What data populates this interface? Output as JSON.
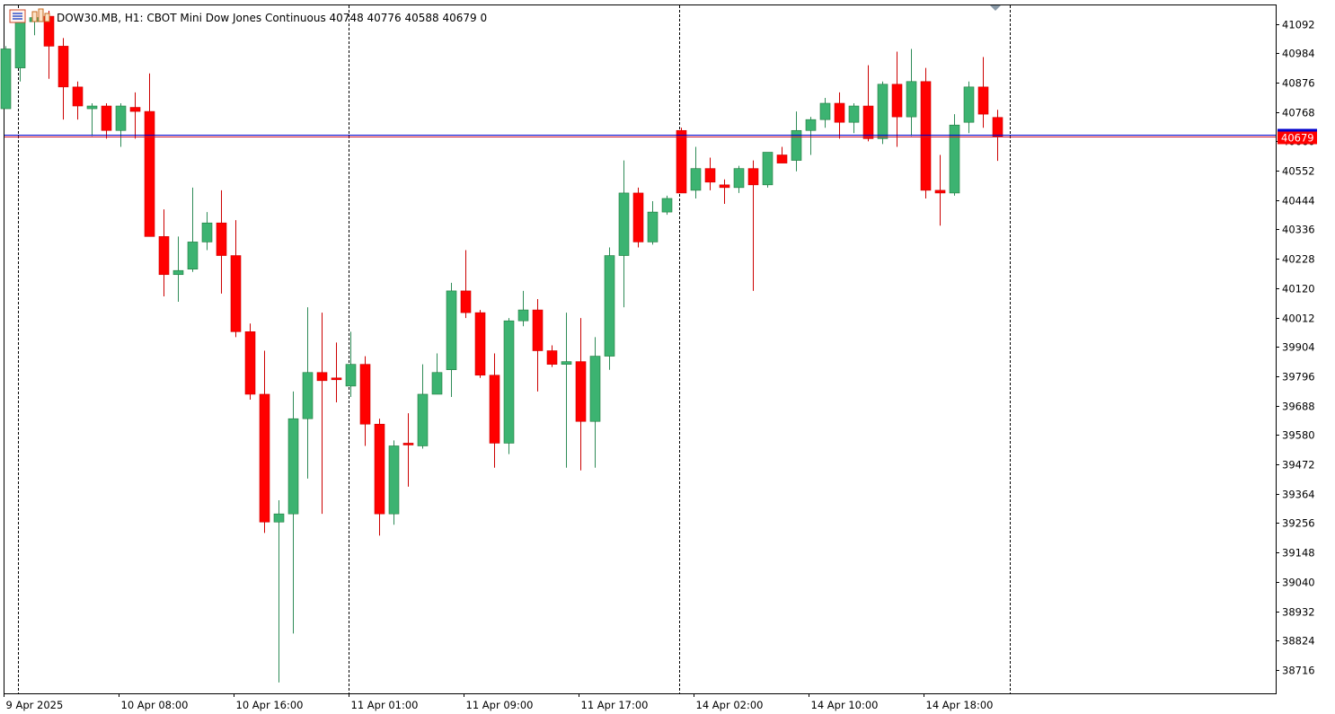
{
  "header": {
    "symbol_text": "DOW30.MB, H1:  CBOT Mini Dow Jones Continuous  40748 40776 40588 40679  0",
    "icons": [
      "chart-menu-icon",
      "chart-bars-icon"
    ]
  },
  "price_tag": {
    "label": "40679",
    "value": 40679,
    "ask_value": 40686,
    "color": "#ff0000",
    "bid_line_color": "#c8102e",
    "ask_line_color": "#0000cc"
  },
  "colors": {
    "bull": "#3cb371",
    "bear": "#ff0000",
    "bull_outline": "#1e7a3c",
    "bear_outline": "#cc0000",
    "wick_bull": "#2e8b57",
    "wick_bear": "#cc0000",
    "doji": "#44dd44",
    "frame": "#000000",
    "separator": "#000000"
  },
  "chart_data": {
    "type": "candlestick",
    "title": "",
    "ylim": [
      38630,
      41160
    ],
    "y_ticks": [
      41092,
      40984,
      40876,
      40768,
      40660,
      40552,
      40444,
      40336,
      40228,
      40120,
      40012,
      39904,
      39796,
      39688,
      39580,
      39472,
      39364,
      39256,
      39148,
      39040,
      38932,
      38824,
      38716
    ],
    "y_tick_labels": [
      "41092",
      "40984",
      "40876",
      "40768",
      "40660",
      "40552",
      "40444",
      "40336",
      "40228",
      "40120",
      "40012",
      "39904",
      "39796",
      "39688",
      "39580",
      "39472",
      "39364",
      "39256",
      "39148",
      "39040",
      "38932",
      "38824",
      "38716"
    ],
    "x_labels": [
      {
        "bar": 0,
        "text": "9 Apr 2025"
      },
      {
        "bar": 8,
        "text": "10 Apr 08:00"
      },
      {
        "bar": 16,
        "text": "10 Apr 16:00"
      },
      {
        "bar": 24,
        "text": "11 Apr 01:00"
      },
      {
        "bar": 32,
        "text": "11 Apr 09:00"
      },
      {
        "bar": 40,
        "text": "11 Apr 17:00"
      },
      {
        "bar": 48,
        "text": "14 Apr 02:00"
      },
      {
        "bar": 56,
        "text": "14 Apr 10:00"
      },
      {
        "bar": 64,
        "text": "14 Apr 18:00"
      }
    ],
    "session_separators_bar": [
      0.5,
      23.5,
      46.5,
      69.5
    ],
    "grid": false,
    "candles": [
      {
        "o": 40780,
        "h": 41010,
        "l": 40780,
        "c": 41000
      },
      {
        "o": 40930,
        "h": 41120,
        "l": 40880,
        "c": 41100
      },
      {
        "o": 41100,
        "h": 41130,
        "l": 41050,
        "c": 41115
      },
      {
        "o": 41120,
        "h": 41140,
        "l": 40890,
        "c": 41010
      },
      {
        "o": 41010,
        "h": 41040,
        "l": 40740,
        "c": 40860
      },
      {
        "o": 40860,
        "h": 40880,
        "l": 40740,
        "c": 40790
      },
      {
        "o": 40780,
        "h": 40800,
        "l": 40680,
        "c": 40790
      },
      {
        "o": 40790,
        "h": 40800,
        "l": 40670,
        "c": 40700
      },
      {
        "o": 40700,
        "h": 40800,
        "l": 40640,
        "c": 40790
      },
      {
        "o": 40785,
        "h": 40840,
        "l": 40670,
        "c": 40770
      },
      {
        "o": 40770,
        "h": 40910,
        "l": 40310,
        "c": 40310
      },
      {
        "o": 40310,
        "h": 40410,
        "l": 40090,
        "c": 40170
      },
      {
        "o": 40170,
        "h": 40310,
        "l": 40070,
        "c": 40185
      },
      {
        "o": 40190,
        "h": 40490,
        "l": 40180,
        "c": 40290
      },
      {
        "o": 40290,
        "h": 40400,
        "l": 40260,
        "c": 40360
      },
      {
        "o": 40360,
        "h": 40480,
        "l": 40100,
        "c": 40240
      },
      {
        "o": 40240,
        "h": 40370,
        "l": 39940,
        "c": 39960
      },
      {
        "o": 39960,
        "h": 39990,
        "l": 39710,
        "c": 39730
      },
      {
        "o": 39730,
        "h": 39890,
        "l": 39220,
        "c": 39260
      },
      {
        "o": 39260,
        "h": 39340,
        "l": 38670,
        "c": 39290
      },
      {
        "o": 39290,
        "h": 39740,
        "l": 38850,
        "c": 39640
      },
      {
        "o": 39640,
        "h": 40050,
        "l": 39420,
        "c": 39810
      },
      {
        "o": 39810,
        "h": 40030,
        "l": 39290,
        "c": 39780
      },
      {
        "o": 39790,
        "h": 39920,
        "l": 39700,
        "c": 39785
      },
      {
        "o": 39760,
        "h": 39960,
        "l": 39720,
        "c": 39840
      },
      {
        "o": 39840,
        "h": 39870,
        "l": 39540,
        "c": 39620
      },
      {
        "o": 39620,
        "h": 39640,
        "l": 39210,
        "c": 39290
      },
      {
        "o": 39290,
        "h": 39560,
        "l": 39250,
        "c": 39540
      },
      {
        "o": 39550,
        "h": 39660,
        "l": 39390,
        "c": 39550
      },
      {
        "o": 39540,
        "h": 39840,
        "l": 39530,
        "c": 39730
      },
      {
        "o": 39730,
        "h": 39880,
        "l": 39730,
        "c": 39810
      },
      {
        "o": 39820,
        "h": 40140,
        "l": 39720,
        "c": 40110
      },
      {
        "o": 40110,
        "h": 40260,
        "l": 40010,
        "c": 40030
      },
      {
        "o": 40030,
        "h": 40040,
        "l": 39790,
        "c": 39800
      },
      {
        "o": 39800,
        "h": 39880,
        "l": 39460,
        "c": 39550
      },
      {
        "o": 39550,
        "h": 40010,
        "l": 39510,
        "c": 40000
      },
      {
        "o": 40000,
        "h": 40110,
        "l": 39980,
        "c": 40040
      },
      {
        "o": 40040,
        "h": 40080,
        "l": 39740,
        "c": 39890
      },
      {
        "o": 39890,
        "h": 39910,
        "l": 39830,
        "c": 39840
      },
      {
        "o": 39840,
        "h": 40030,
        "l": 39460,
        "c": 39850
      },
      {
        "o": 39850,
        "h": 40010,
        "l": 39450,
        "c": 39630
      },
      {
        "o": 39630,
        "h": 39940,
        "l": 39460,
        "c": 39870
      },
      {
        "o": 39870,
        "h": 40270,
        "l": 39820,
        "c": 40240
      },
      {
        "o": 40240,
        "h": 40590,
        "l": 40050,
        "c": 40470
      },
      {
        "o": 40470,
        "h": 40490,
        "l": 40270,
        "c": 40290
      },
      {
        "o": 40290,
        "h": 40440,
        "l": 40280,
        "c": 40400
      },
      {
        "o": 40400,
        "h": 40460,
        "l": 40390,
        "c": 40450
      },
      {
        "o": 40700,
        "h": 40710,
        "l": 40470,
        "c": 40470
      },
      {
        "o": 40480,
        "h": 40640,
        "l": 40450,
        "c": 40560
      },
      {
        "o": 40560,
        "h": 40600,
        "l": 40480,
        "c": 40510
      },
      {
        "o": 40500,
        "h": 40520,
        "l": 40430,
        "c": 40490
      },
      {
        "o": 40490,
        "h": 40570,
        "l": 40470,
        "c": 40560
      },
      {
        "o": 40560,
        "h": 40590,
        "l": 40110,
        "c": 40500
      },
      {
        "o": 40500,
        "h": 40620,
        "l": 40490,
        "c": 40620
      },
      {
        "o": 40610,
        "h": 40640,
        "l": 40580,
        "c": 40580
      },
      {
        "o": 40590,
        "h": 40770,
        "l": 40550,
        "c": 40700
      },
      {
        "o": 40700,
        "h": 40750,
        "l": 40610,
        "c": 40740
      },
      {
        "o": 40740,
        "h": 40820,
        "l": 40710,
        "c": 40800
      },
      {
        "o": 40800,
        "h": 40840,
        "l": 40670,
        "c": 40730
      },
      {
        "o": 40730,
        "h": 40800,
        "l": 40690,
        "c": 40790
      },
      {
        "o": 40790,
        "h": 40940,
        "l": 40660,
        "c": 40670
      },
      {
        "o": 40670,
        "h": 40880,
        "l": 40650,
        "c": 40870
      },
      {
        "o": 40870,
        "h": 40990,
        "l": 40640,
        "c": 40750
      },
      {
        "o": 40750,
        "h": 41000,
        "l": 40680,
        "c": 40880
      },
      {
        "o": 40880,
        "h": 40930,
        "l": 40450,
        "c": 40480
      },
      {
        "o": 40480,
        "h": 40610,
        "l": 40350,
        "c": 40470
      },
      {
        "o": 40470,
        "h": 40760,
        "l": 40460,
        "c": 40720
      },
      {
        "o": 40730,
        "h": 40880,
        "l": 40690,
        "c": 40860
      },
      {
        "o": 40860,
        "h": 40970,
        "l": 40710,
        "c": 40760
      },
      {
        "o": 40748,
        "h": 40776,
        "l": 40588,
        "c": 40679
      }
    ]
  }
}
